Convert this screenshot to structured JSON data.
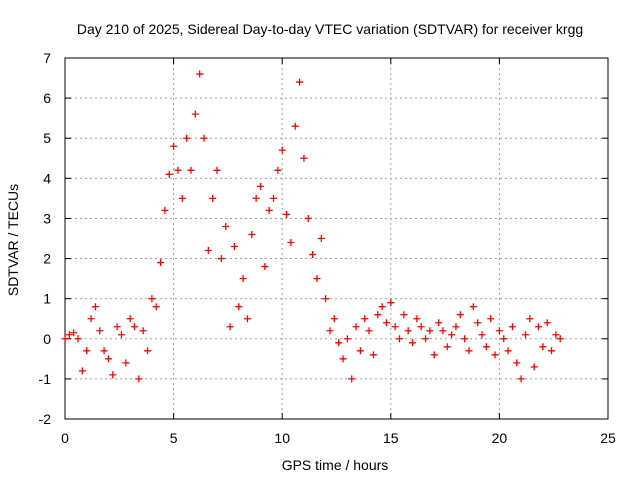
{
  "chart_data": {
    "type": "scatter",
    "title": "Day 210 of 2025, Sidereal Day-to-day VTEC variation (SDTVAR) for receiver krgg",
    "xlabel": "GPS time / hours",
    "ylabel": "SDTVAR / TECUs",
    "xlim": [
      0,
      25
    ],
    "ylim": [
      -2,
      7
    ],
    "xticks": [
      "0",
      "5",
      "10",
      "15",
      "20",
      "25"
    ],
    "yticks": [
      "-2",
      "-1",
      "0",
      "1",
      "2",
      "3",
      "4",
      "5",
      "6",
      "7"
    ],
    "grid": true,
    "marker": "+",
    "colors": {
      "series": "#ff0000",
      "grid": "#a0a0a0",
      "axis": "#000000"
    },
    "series": [
      {
        "name": "SDTVAR",
        "x": [
          0.0,
          0.2,
          0.4,
          0.6,
          0.8,
          1.0,
          1.2,
          1.4,
          1.6,
          1.8,
          2.0,
          2.2,
          2.4,
          2.6,
          2.8,
          3.0,
          3.2,
          3.4,
          3.6,
          3.8,
          4.0,
          4.2,
          4.4,
          4.6,
          4.8,
          5.0,
          5.2,
          5.4,
          5.6,
          5.8,
          6.0,
          6.2,
          6.4,
          6.6,
          6.8,
          7.0,
          7.2,
          7.4,
          7.6,
          7.8,
          8.0,
          8.2,
          8.4,
          8.6,
          8.8,
          9.0,
          9.2,
          9.4,
          9.6,
          9.8,
          10.0,
          10.2,
          10.4,
          10.6,
          10.8,
          11.0,
          11.2,
          11.4,
          11.6,
          11.8,
          12.0,
          12.2,
          12.4,
          12.6,
          12.8,
          13.0,
          13.2,
          13.4,
          13.6,
          13.8,
          14.0,
          14.2,
          14.4,
          14.6,
          14.8,
          15.0,
          15.2,
          15.4,
          15.6,
          15.8,
          16.0,
          16.2,
          16.4,
          16.6,
          16.8,
          17.0,
          17.2,
          17.4,
          17.6,
          17.8,
          18.0,
          18.2,
          18.4,
          18.6,
          18.8,
          19.0,
          19.2,
          19.4,
          19.6,
          19.8,
          20.0,
          20.2,
          20.4,
          20.6,
          20.8,
          21.0,
          21.2,
          21.4,
          21.6,
          21.8,
          22.0,
          22.2,
          22.4,
          22.6,
          22.8
        ],
        "y": [
          0.0,
          0.1,
          0.15,
          0.0,
          -0.8,
          -0.3,
          0.5,
          0.8,
          0.2,
          -0.3,
          -0.5,
          -0.9,
          0.3,
          0.1,
          -0.6,
          0.5,
          0.3,
          -1.0,
          0.2,
          -0.3,
          1.0,
          0.8,
          1.9,
          3.2,
          4.1,
          4.8,
          4.2,
          3.5,
          5.0,
          4.2,
          5.6,
          6.6,
          5.0,
          2.2,
          3.5,
          4.2,
          2.0,
          2.8,
          0.3,
          2.3,
          0.8,
          1.5,
          0.5,
          2.6,
          3.5,
          3.8,
          1.8,
          3.2,
          3.5,
          4.2,
          4.7,
          3.1,
          2.4,
          5.3,
          6.4,
          4.5,
          3.0,
          2.1,
          1.5,
          2.5,
          1.0,
          0.2,
          0.5,
          -0.1,
          -0.5,
          0.0,
          -1.0,
          0.3,
          -0.3,
          0.5,
          0.2,
          -0.4,
          0.6,
          0.8,
          0.4,
          0.9,
          0.3,
          0.0,
          0.6,
          0.2,
          -0.1,
          0.5,
          0.3,
          0.0,
          0.2,
          -0.4,
          0.4,
          0.2,
          -0.2,
          0.1,
          0.3,
          0.6,
          0.0,
          -0.3,
          0.8,
          0.4,
          0.1,
          -0.2,
          0.5,
          -0.4,
          0.2,
          0.0,
          -0.3,
          0.3,
          -0.6,
          -1.0,
          0.1,
          0.5,
          -0.7,
          0.3,
          -0.2,
          0.4,
          -0.3,
          0.1,
          0.0
        ]
      }
    ]
  }
}
